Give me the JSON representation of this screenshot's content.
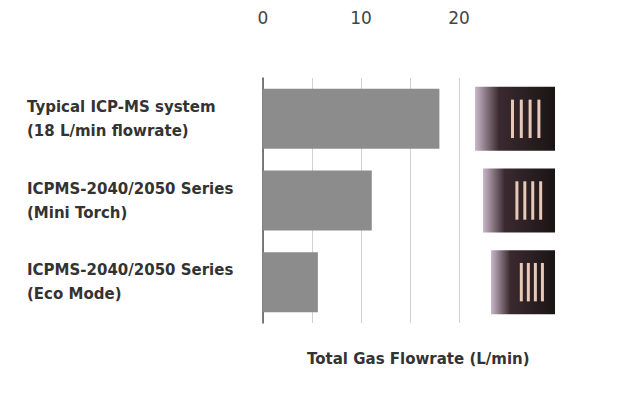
{
  "chart_data": {
    "type": "bar",
    "orientation": "horizontal",
    "xlabel": "Total Gas Flowrate (L/min)",
    "categories": [
      "Typical ICP-MS system\n(18 L/min flowrate)",
      "ICPMS-2040/2050 Series\n(Mini Torch)",
      "ICPMS-2040/2050 Series\n(Eco Mode)"
    ],
    "values": [
      18,
      11.1,
      5.6
    ],
    "color": "#8c8c8c",
    "xlim": [
      0,
      20
    ],
    "xticks": [
      0,
      10,
      20
    ],
    "grid": true
  }
}
